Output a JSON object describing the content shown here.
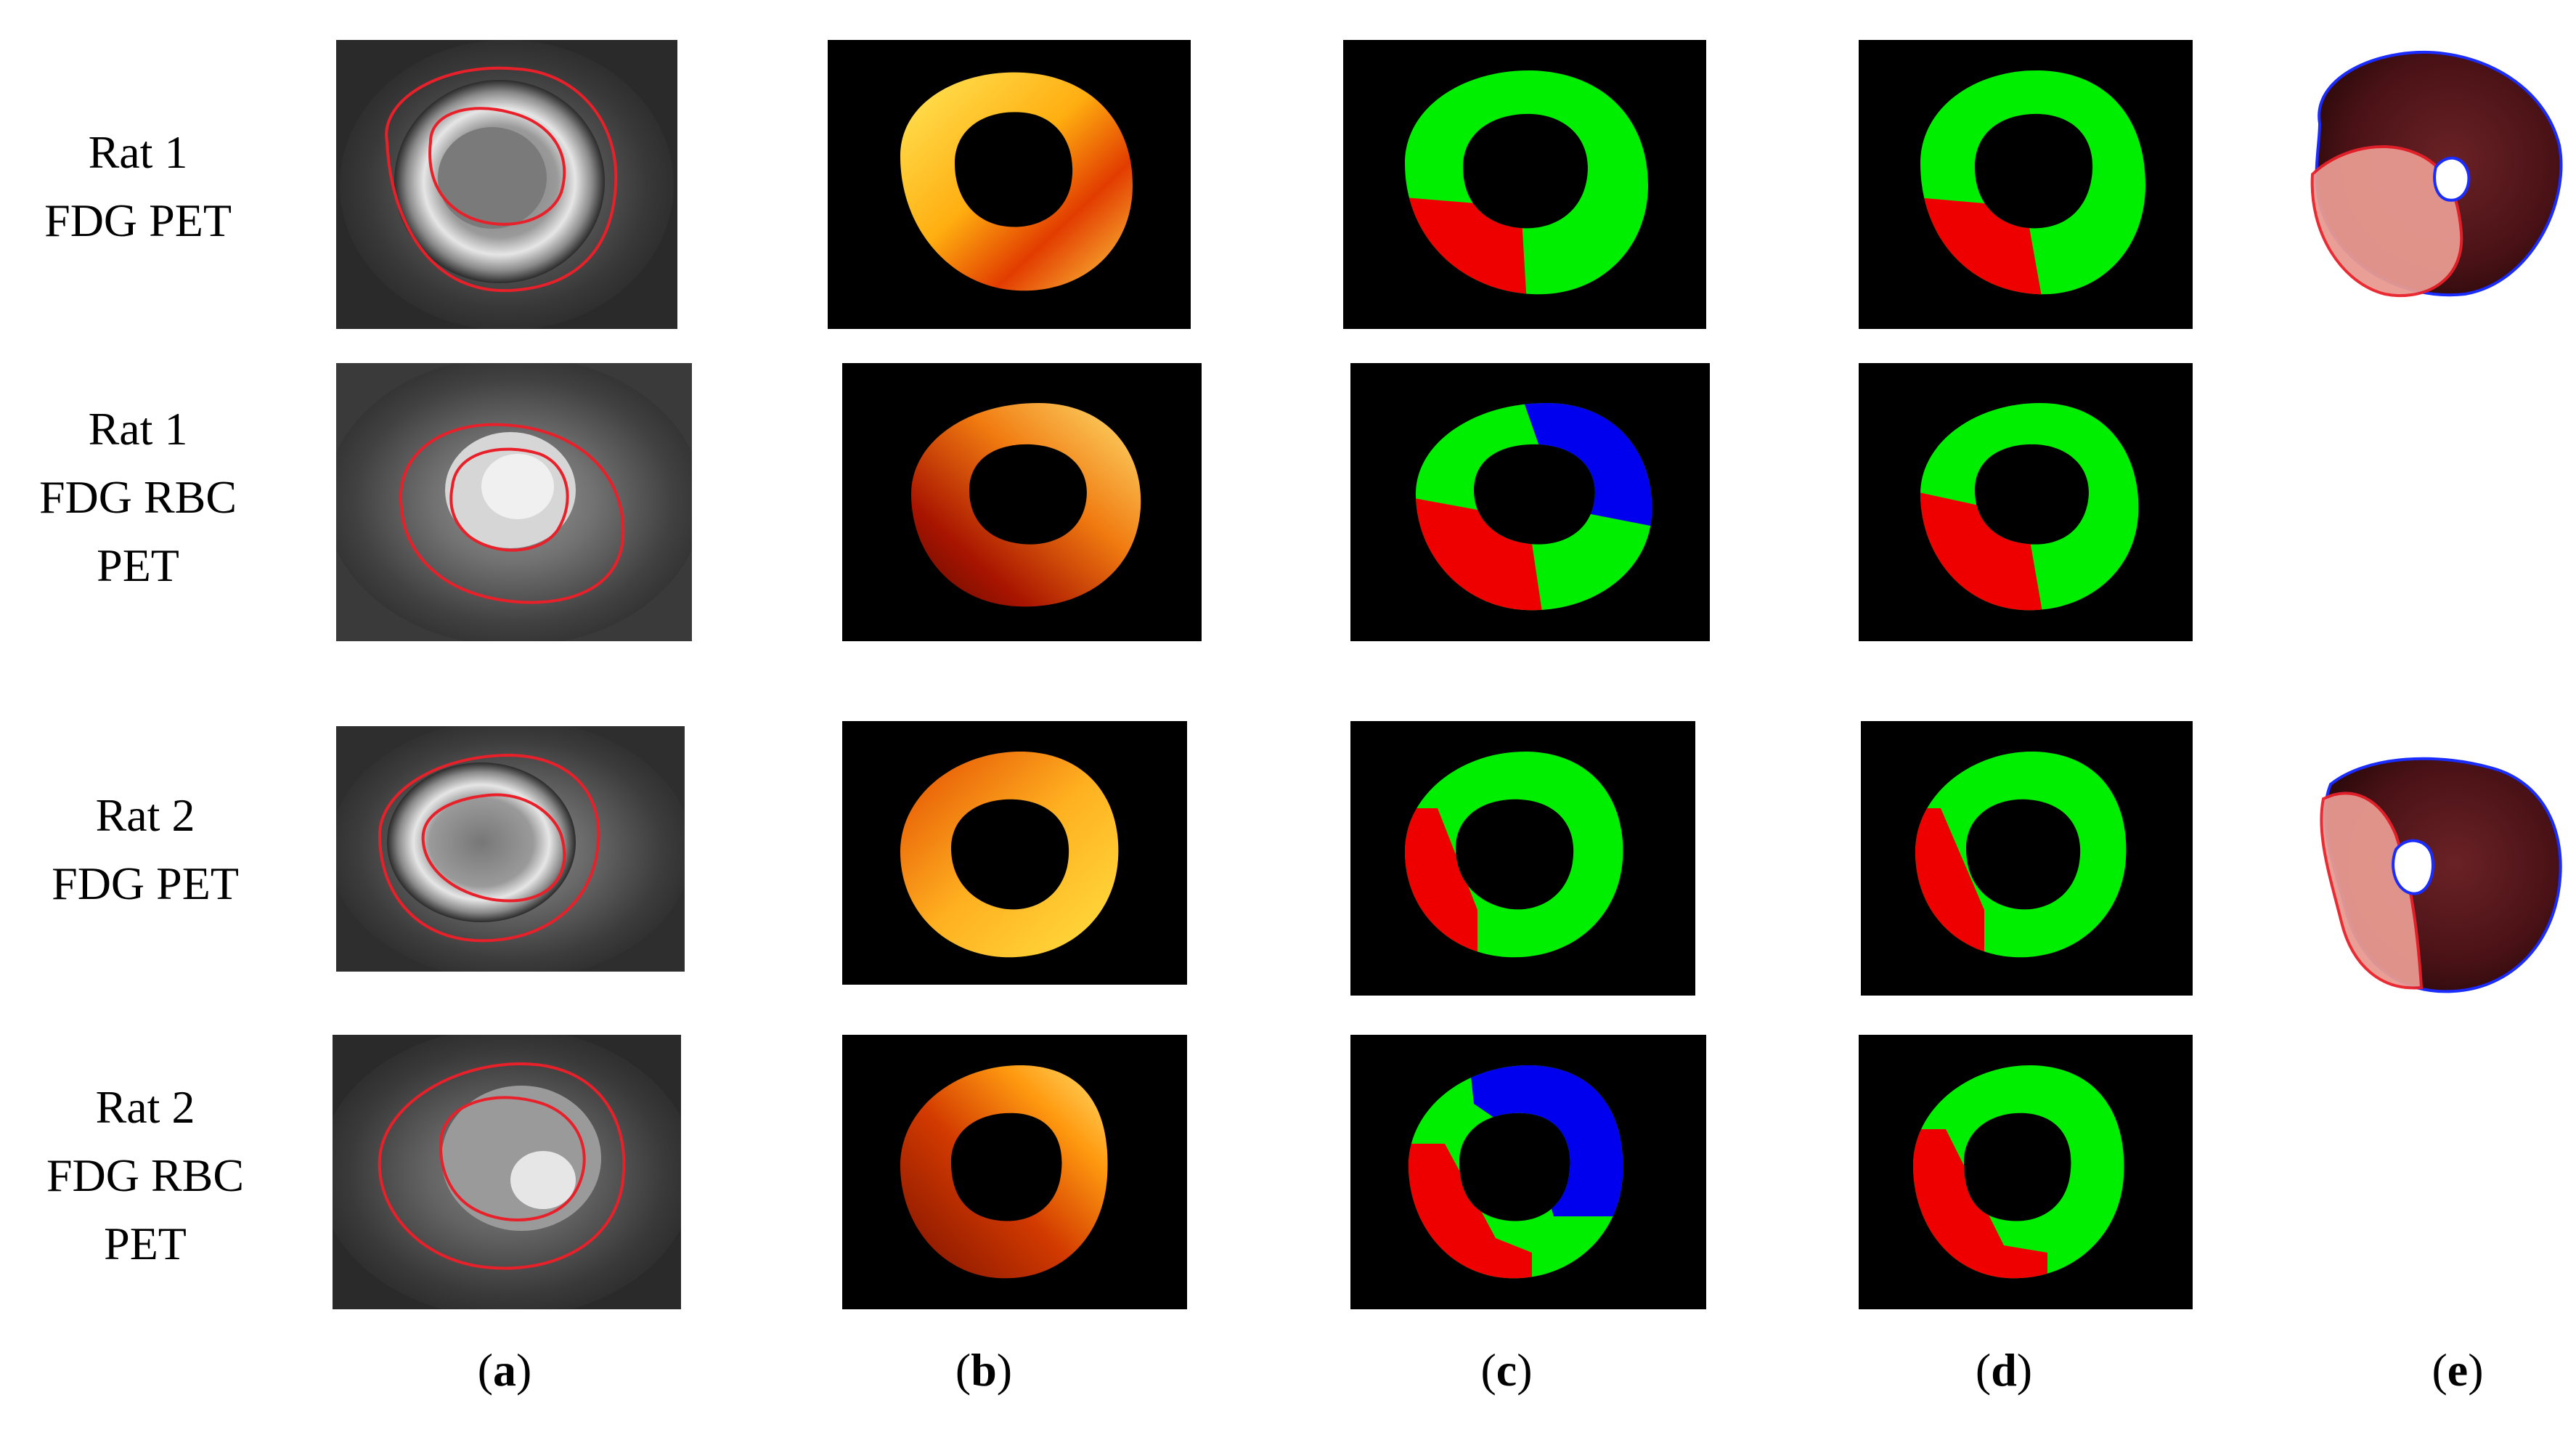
{
  "rows": [
    {
      "line1": "Rat 1",
      "line2": "FDG PET",
      "line3": ""
    },
    {
      "line1": "Rat 1",
      "line2": "FDG RBC",
      "line3": "PET"
    },
    {
      "line1": "Rat 2",
      "line2": "FDG PET",
      "line3": ""
    },
    {
      "line1": "Rat 2",
      "line2": "FDG RBC",
      "line3": "PET"
    }
  ],
  "columns": [
    {
      "open": "(",
      "letter": "a",
      "close": ")"
    },
    {
      "open": "(",
      "letter": "b",
      "close": ")"
    },
    {
      "open": "(",
      "letter": "c",
      "close": ")"
    },
    {
      "open": "(",
      "letter": "d",
      "close": ")"
    },
    {
      "open": "(",
      "letter": "e",
      "close": ")"
    }
  ],
  "colors": {
    "contour": "#e8202a",
    "segment_remote": "#00ee00",
    "segment_infarct": "#ee0000",
    "segment_third": "#0000ee",
    "tissue_outline_blue": "#1a2cff",
    "tissue_dark": "#5a1a1c",
    "tissue_pale": "#e89a90"
  }
}
